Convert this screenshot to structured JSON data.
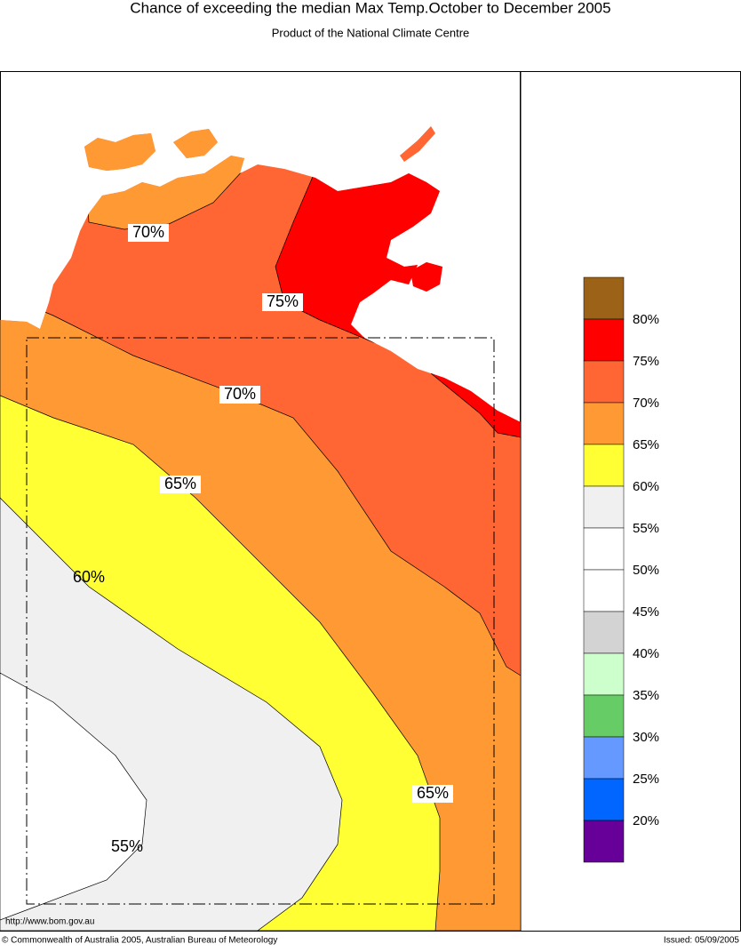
{
  "header": {
    "title": "Chance of exceeding the median Max Temp.October to December 2005",
    "subtitle": "Product of the National Climate Centre"
  },
  "map": {
    "contour_labels": [
      "70%",
      "75%",
      "70%",
      "65%",
      "60%",
      "65%",
      "55%"
    ],
    "source_url": "http://www.bom.gov.au"
  },
  "legend": {
    "labels": [
      "80%",
      "75%",
      "70%",
      "65%",
      "60%",
      "55%",
      "50%",
      "45%",
      "40%",
      "35%",
      "30%",
      "25%",
      "20%"
    ],
    "colors": [
      "#9c6318",
      "#ff0000",
      "#ff6633",
      "#ff9933",
      "#ffff33",
      "#f0f0f0",
      "#ffffff",
      "#ffffff",
      "#d3d3d3",
      "#ccffcc",
      "#66cc66",
      "#6699ff",
      "#0066ff",
      "#660099"
    ]
  },
  "footer": {
    "copyright": "© Commonwealth of Australia 2005, Australian Bureau of Meteorology",
    "issued": "Issued: 05/09/2005"
  }
}
